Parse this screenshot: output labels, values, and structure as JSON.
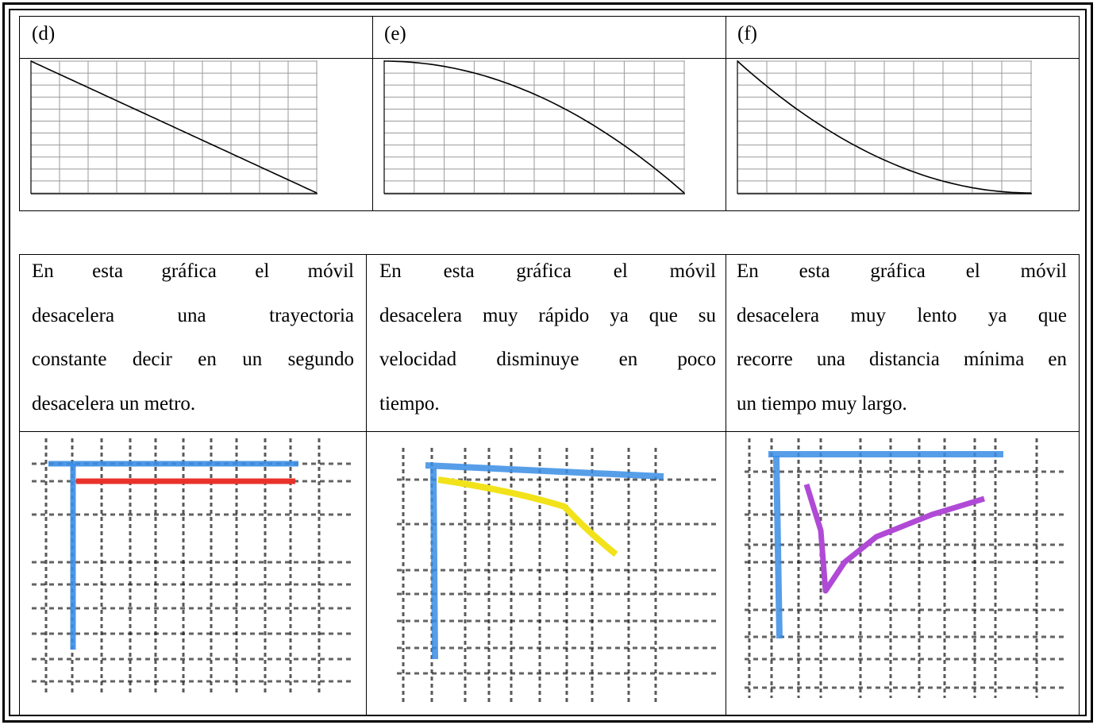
{
  "top_row": {
    "labels": [
      "(d)",
      "(e)",
      "(f)"
    ]
  },
  "text_row": {
    "cells": [
      {
        "lines": [
          "En esta gráfica el móvil",
          "desacelera una trayectoria",
          "constante decir en un segundo",
          "desacelera un metro."
        ]
      },
      {
        "lines": [
          "En esta gráfica el móvil",
          "desacelera muy rápido ya que su",
          "velocidad disminuye en poco",
          "tiempo."
        ]
      },
      {
        "lines": [
          "En esta gráfica el móvil",
          "desacelera muy lento ya que",
          "recorre una distancia mínima en",
          "un tiempo muy largo."
        ]
      }
    ]
  },
  "graphs": {
    "grid_color": "#9a9a9a",
    "curve_color": "#000000",
    "items": [
      {
        "name": "d",
        "shape": "linear-decrease"
      },
      {
        "name": "e",
        "shape": "concave-down-decrease"
      },
      {
        "name": "f",
        "shape": "concave-up-decrease"
      }
    ]
  },
  "sketches": {
    "items": [
      {
        "name": "sketch-d",
        "axis_color": "#3a8ee6",
        "curve_color": "#e8322a"
      },
      {
        "name": "sketch-e",
        "axis_color": "#3a8ee6",
        "curve_color": "#f2e21a"
      },
      {
        "name": "sketch-f",
        "axis_color": "#3a8ee6",
        "curve_color": "#b04ad6"
      }
    ]
  }
}
